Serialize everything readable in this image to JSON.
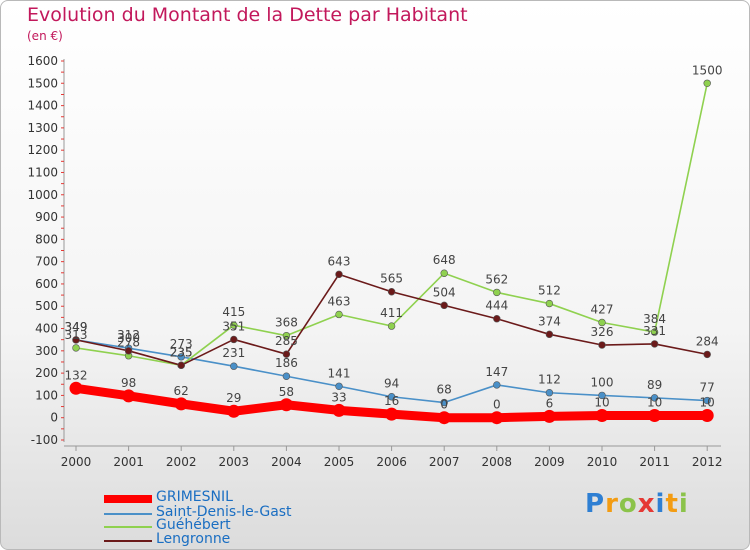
{
  "title": "Evolution du Montant de la Dette par Habitant",
  "subtitle": "(en €)",
  "logo": "Proxiti",
  "chart_data": {
    "type": "line",
    "x": [
      "2000",
      "2001",
      "2002",
      "2003",
      "2004",
      "2005",
      "2006",
      "2007",
      "2008",
      "2009",
      "2010",
      "2011",
      "2012"
    ],
    "ylim": [
      -100,
      1600
    ],
    "yticks": [
      -100,
      0,
      100,
      200,
      300,
      400,
      500,
      600,
      700,
      800,
      900,
      1000,
      1100,
      1200,
      1300,
      1400,
      1500,
      1600
    ],
    "grid": false,
    "legend_position": "bottom-left",
    "series": [
      {
        "name": "GRIMESNIL",
        "color": "#ff0000",
        "values": [
          132,
          98,
          62,
          29,
          58,
          33,
          16,
          0,
          0,
          6,
          10,
          10,
          10
        ]
      },
      {
        "name": "Saint-Denis-le-Gast",
        "color": "#4a90c8",
        "values": [
          349,
          312,
          273,
          231,
          186,
          141,
          94,
          68,
          147,
          112,
          100,
          89,
          77
        ]
      },
      {
        "name": "Guéhébert",
        "color": "#8fd14f",
        "values": [
          313,
          278,
          235,
          415,
          368,
          463,
          411,
          648,
          562,
          512,
          427,
          384,
          1500
        ]
      },
      {
        "name": "Lengronne",
        "color": "#6b1a1a",
        "values": [
          349,
          300,
          235,
          351,
          285,
          643,
          565,
          504,
          444,
          374,
          326,
          331,
          284
        ]
      }
    ]
  }
}
